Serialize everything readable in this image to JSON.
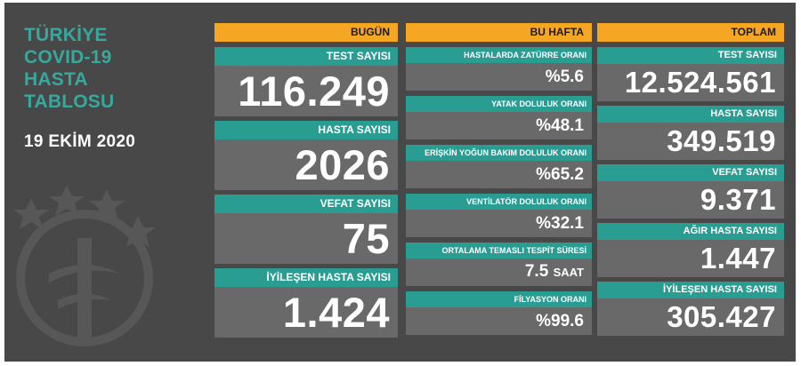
{
  "side": {
    "title_lines": [
      "TÜRKİYE",
      "COVID-19",
      "HASTA",
      "TABLOSU"
    ],
    "date": "19 EKİM 2020"
  },
  "today": {
    "header": "BUGÜN",
    "cards": [
      {
        "label": "TEST SAYISI",
        "value": "116.249"
      },
      {
        "label": "HASTA SAYISI",
        "value": "2026"
      },
      {
        "label": "VEFAT SAYISI",
        "value": "75"
      },
      {
        "label": "İYİLEŞEN HASTA SAYISI",
        "value": "1.424"
      }
    ]
  },
  "week": {
    "header": "BU HAFTA",
    "cards": [
      {
        "label": "HASTALARDA ZATÜRRE ORANI",
        "value": "%5.6",
        "unit": ""
      },
      {
        "label": "YATAK DOLULUK ORANI",
        "value": "%48.1",
        "unit": ""
      },
      {
        "label": "ERİŞKİN YOĞUN BAKIM DOLULUK ORANI",
        "value": "%65.2",
        "unit": ""
      },
      {
        "label": "VENTİLATÖR DOLULUK ORANI",
        "value": "%32.1",
        "unit": ""
      },
      {
        "label": "ORTALAMA TEMASLI TESPİT SÜRESİ",
        "value": "7.5",
        "unit": "SAAT"
      },
      {
        "label": "FİLYASYON ORANI",
        "value": "%99.6",
        "unit": ""
      }
    ]
  },
  "total": {
    "header": "TOPLAM",
    "cards": [
      {
        "label": "TEST SAYISI",
        "value": "12.524.561"
      },
      {
        "label": "HASTA SAYISI",
        "value": "349.519"
      },
      {
        "label": "VEFAT SAYISI",
        "value": "9.371"
      },
      {
        "label": "AĞIR HASTA SAYISI",
        "value": "1.447"
      },
      {
        "label": "İYİLEŞEN HASTA SAYISI",
        "value": "305.427"
      }
    ]
  },
  "colors": {
    "panel_bg": "#484848",
    "card_bg": "#696969",
    "label_teal": "#2a9d92",
    "header_orange": "#f5a623",
    "title_teal": "#37a89d"
  },
  "icons": {
    "emblem": "ministry-of-health-emblem-icon"
  }
}
